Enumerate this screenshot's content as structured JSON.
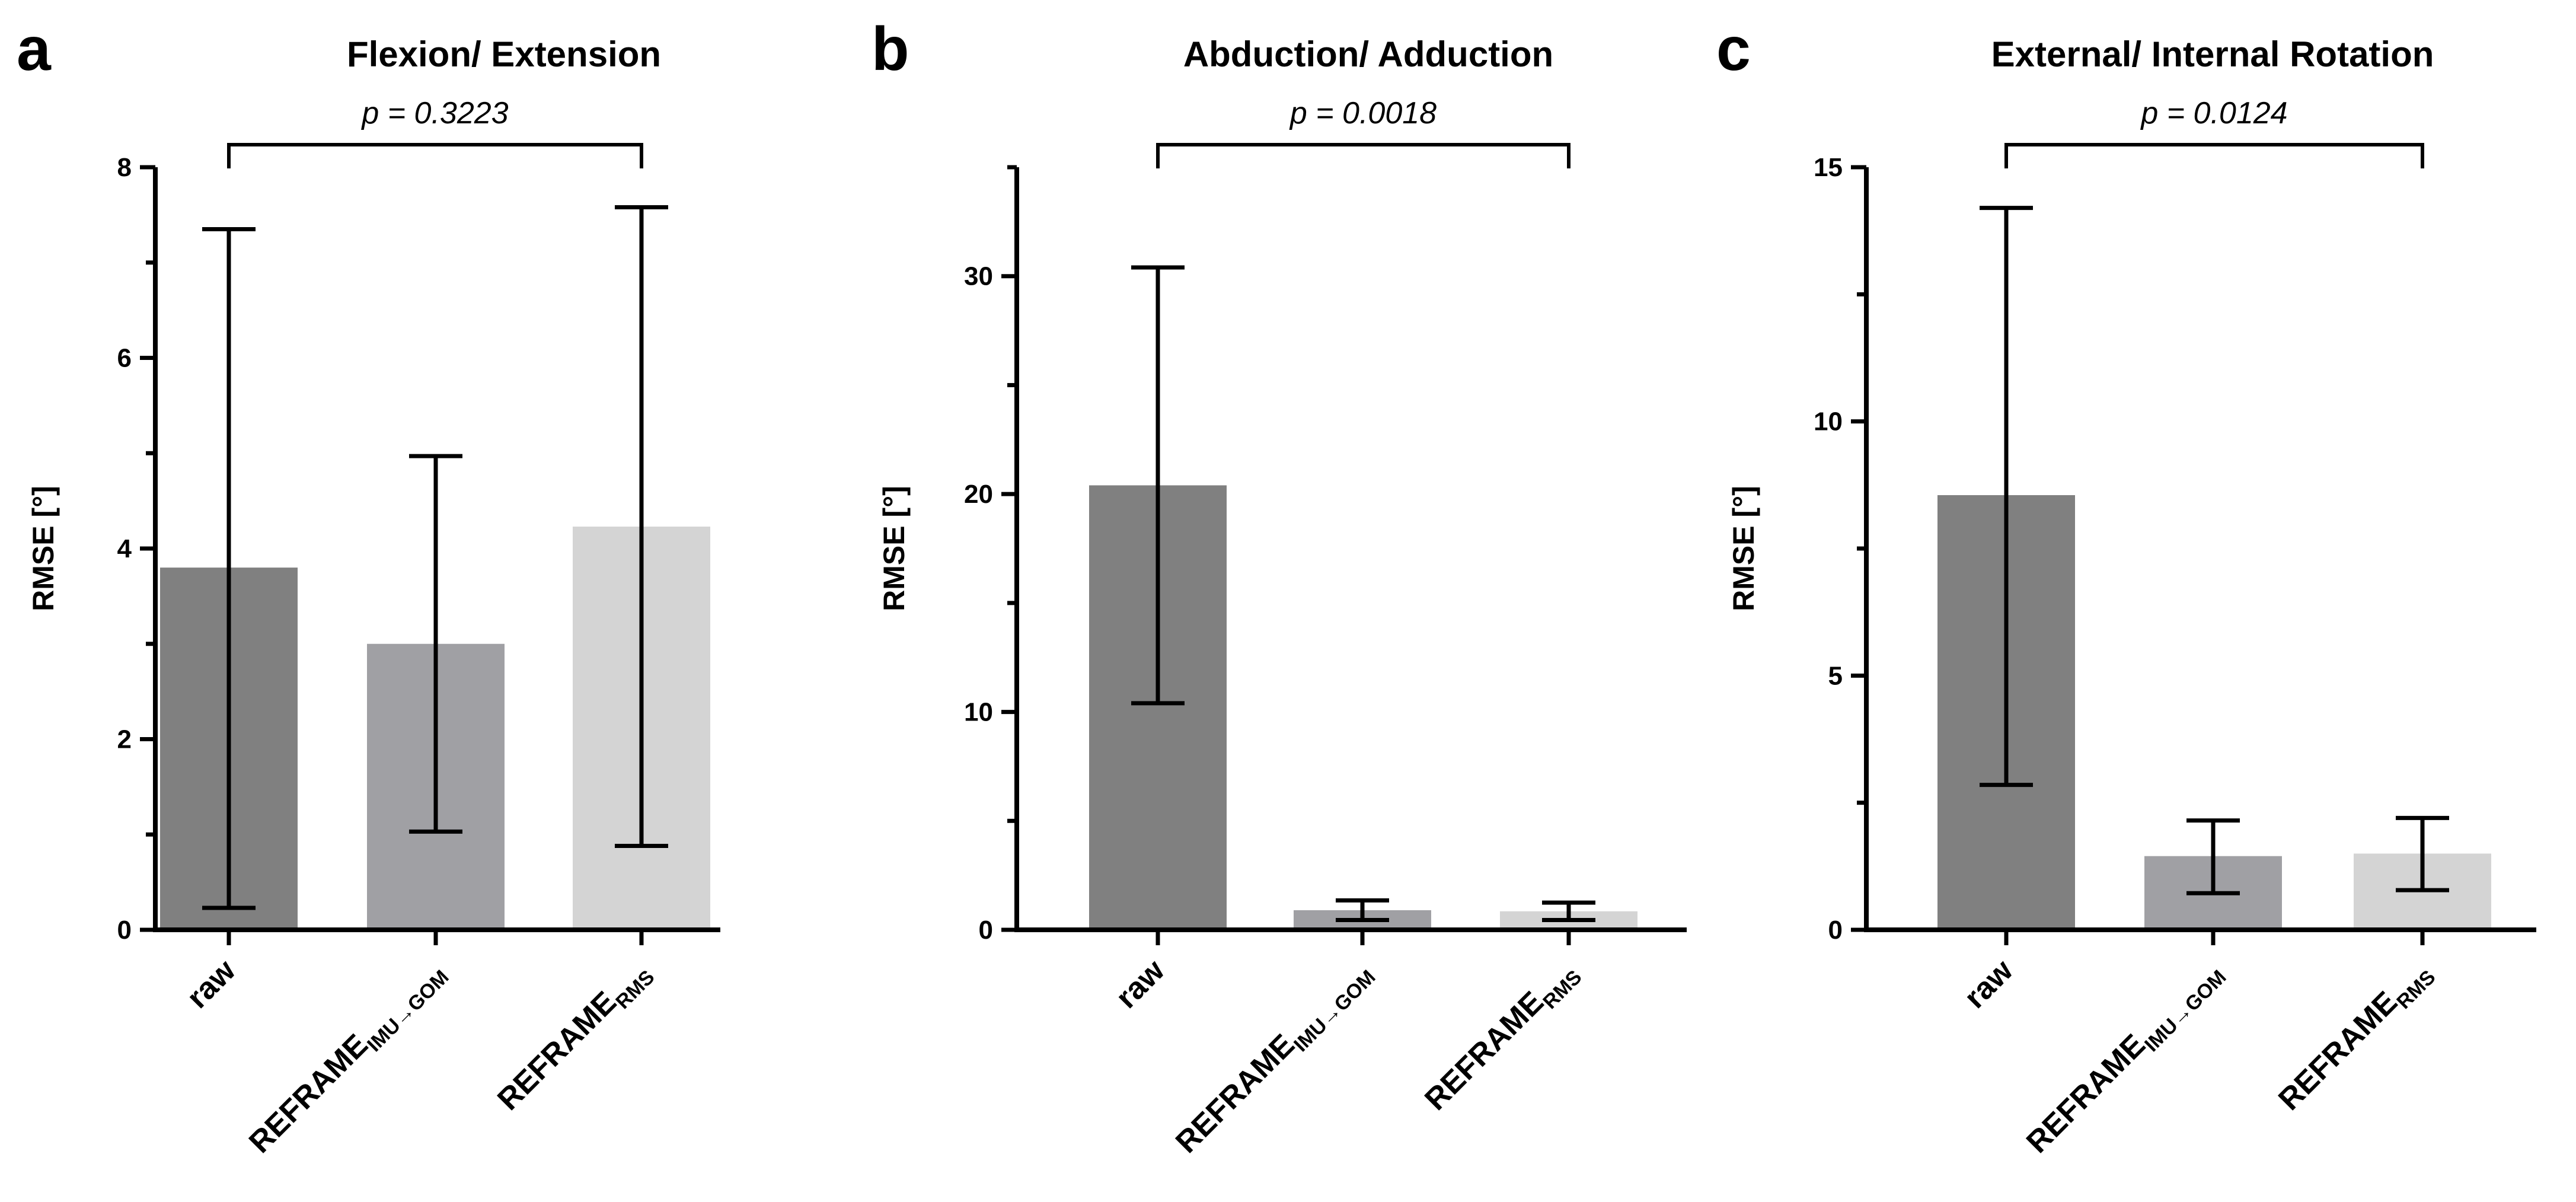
{
  "colors": {
    "raw": "#808080",
    "imu_gom": "#a0a0a4",
    "rms": "#d4d4d4",
    "axis": "#000000"
  },
  "chart_data": [
    {
      "panel": "a",
      "type": "bar",
      "title": "Flexion/ Extension",
      "ylabel": "RMSE [°]",
      "xlabel": "",
      "ylim": [
        0,
        8
      ],
      "yticks": [
        0,
        2,
        4,
        6,
        8
      ],
      "yticks_minor": [
        1,
        3,
        5,
        7
      ],
      "categories": [
        {
          "main": "raw",
          "sub": ""
        },
        {
          "main": "REFRAME",
          "sub": "IMU→GOM"
        },
        {
          "main": "REFRAME",
          "sub": "RMS"
        }
      ],
      "values": [
        3.8,
        3.0,
        4.23
      ],
      "error_low": [
        0.23,
        1.03,
        0.88
      ],
      "error_high": [
        7.35,
        4.97,
        7.58
      ],
      "significance": {
        "text": "p = 0.3223",
        "from": 0,
        "to": 2
      }
    },
    {
      "panel": "b",
      "type": "bar",
      "title": "Abduction/ Adduction",
      "ylabel": "RMSE [°]",
      "xlabel": "",
      "ylim": [
        0,
        35
      ],
      "yticks": [
        0,
        10,
        20,
        30
      ],
      "yticks_minor": [
        5,
        15,
        25,
        35
      ],
      "categories": [
        {
          "main": "raw",
          "sub": ""
        },
        {
          "main": "REFRAME",
          "sub": "IMU→GOM"
        },
        {
          "main": "REFRAME",
          "sub": "RMS"
        }
      ],
      "values": [
        20.4,
        0.9,
        0.85
      ],
      "error_low": [
        10.4,
        0.45,
        0.45
      ],
      "error_high": [
        30.4,
        1.35,
        1.25
      ],
      "significance": {
        "text": "p = 0.0018",
        "from": 0,
        "to": 2
      }
    },
    {
      "panel": "c",
      "type": "bar",
      "title": "External/ Internal Rotation",
      "ylabel": "RMSE [°]",
      "xlabel": "",
      "ylim": [
        0,
        15
      ],
      "yticks": [
        0,
        5,
        10,
        15
      ],
      "yticks_minor": [
        2.5,
        7.5,
        12.5
      ],
      "categories": [
        {
          "main": "raw",
          "sub": ""
        },
        {
          "main": "REFRAME",
          "sub": "IMU→GOM"
        },
        {
          "main": "REFRAME",
          "sub": "RMS"
        }
      ],
      "values": [
        8.55,
        1.45,
        1.5
      ],
      "error_low": [
        2.85,
        0.72,
        0.78
      ],
      "error_high": [
        14.2,
        2.15,
        2.2
      ],
      "significance": {
        "text": "p = 0.0124",
        "from": 0,
        "to": 2
      }
    }
  ]
}
